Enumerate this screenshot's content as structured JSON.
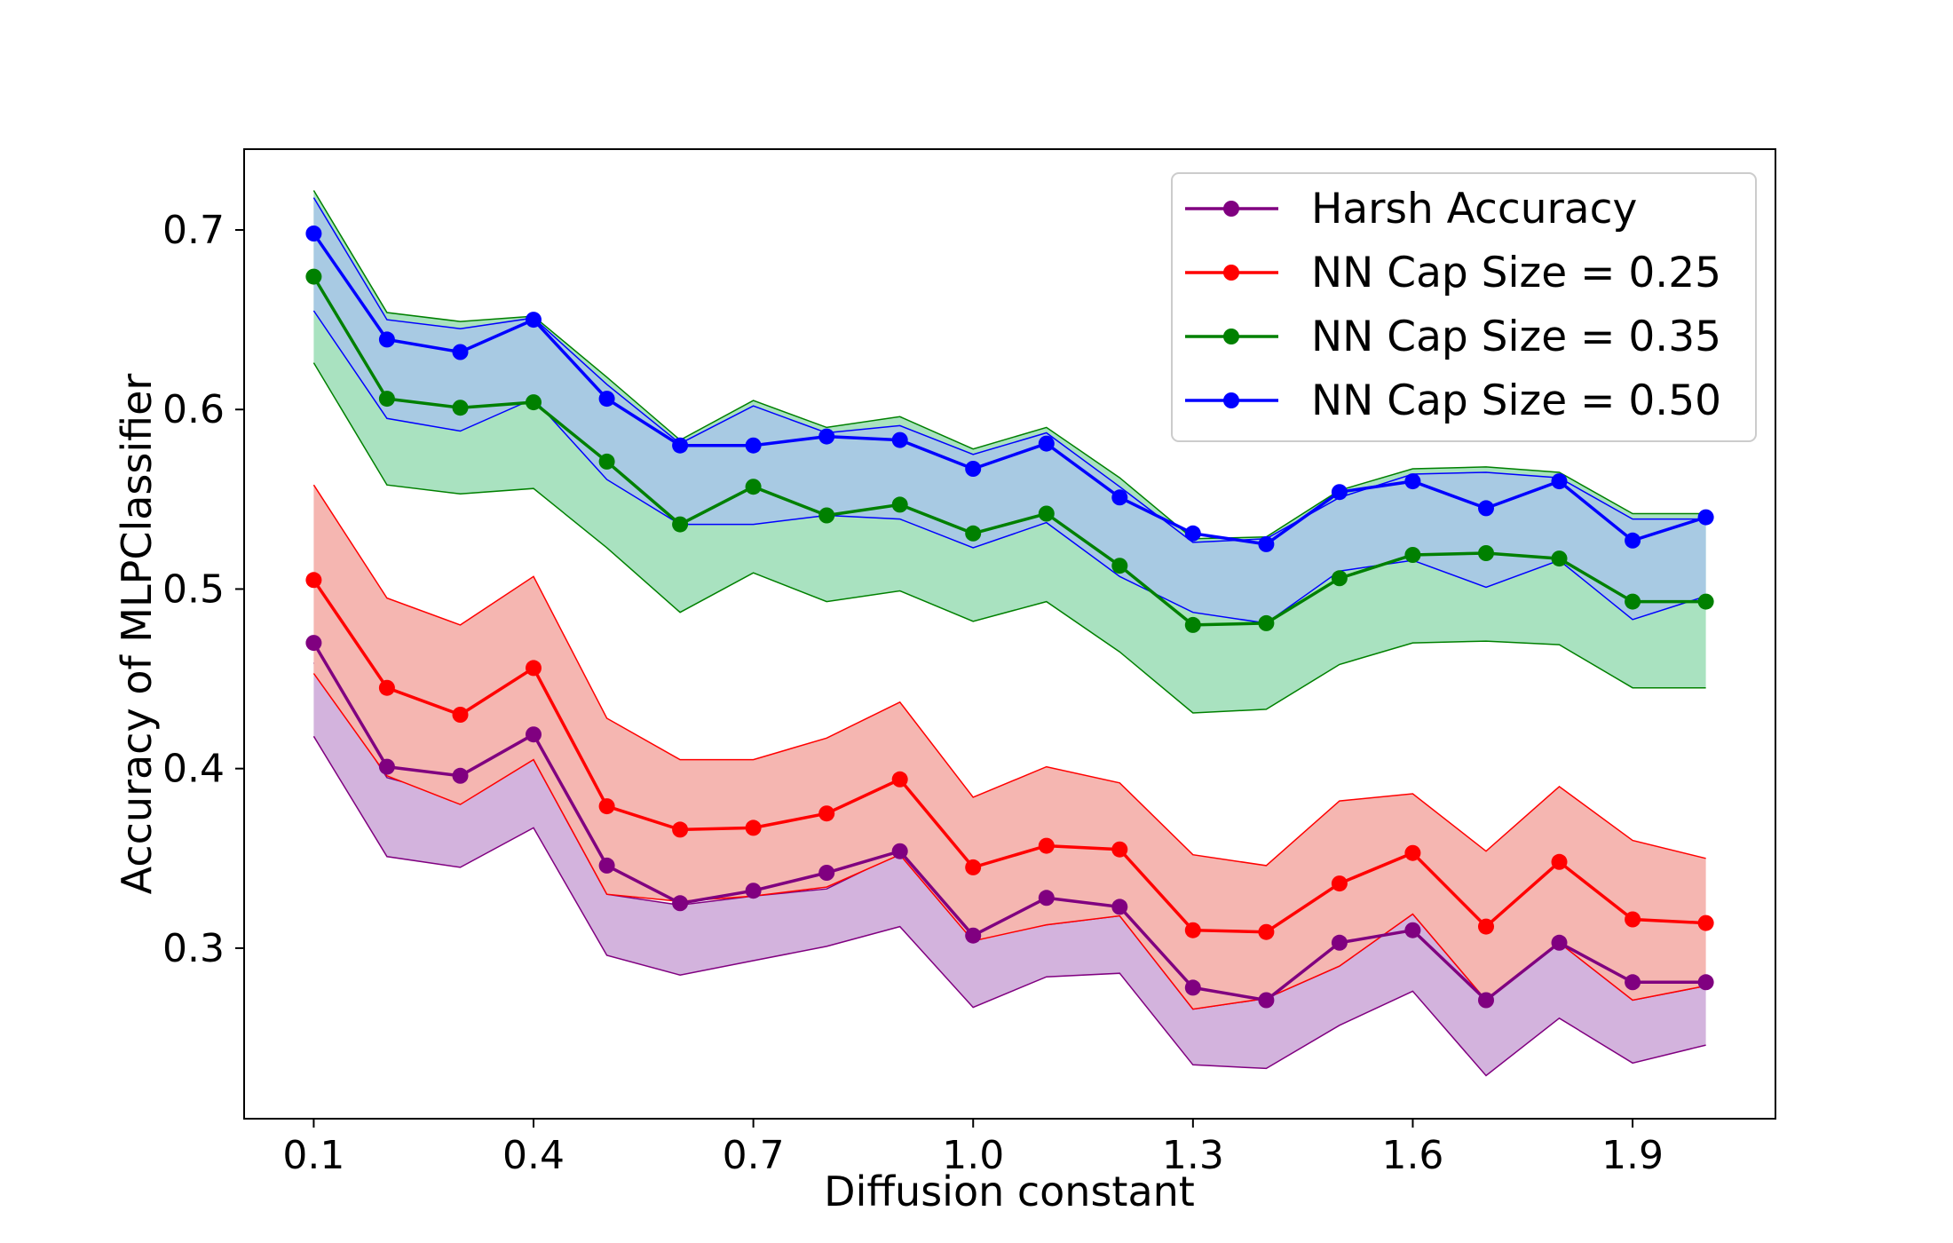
{
  "chart_data": {
    "type": "line",
    "title": "",
    "xlabel": "Diffusion constant",
    "ylabel": "Accuracy of MLPClassifier",
    "xlim": [
      0.005,
      2.095
    ],
    "ylim": [
      0.205,
      0.745
    ],
    "xticks": [
      "0.1",
      "0.4",
      "0.7",
      "1.0",
      "1.3",
      "1.6",
      "1.9"
    ],
    "yticks": [
      "0.3",
      "0.4",
      "0.5",
      "0.6",
      "0.7"
    ],
    "grid": false,
    "legend_position": "top-right",
    "x": [
      0.1,
      0.2,
      0.3,
      0.4,
      0.5,
      0.6,
      0.7,
      0.8,
      0.9,
      1.0,
      1.1,
      1.2,
      1.3,
      1.4,
      1.5,
      1.6,
      1.7,
      1.8,
      1.9,
      2.0
    ],
    "series": [
      {
        "name": "Harsh Accuracy",
        "color": "#800080",
        "fill": "#d3b3dd",
        "values": [
          0.47,
          0.401,
          0.396,
          0.419,
          0.346,
          0.325,
          0.332,
          0.342,
          0.354,
          0.307,
          0.328,
          0.323,
          0.278,
          0.271,
          0.303,
          0.31,
          0.271,
          0.303,
          0.281,
          0.281
        ],
        "upper": [
          0.459,
          0.395,
          0.384,
          0.405,
          0.33,
          0.324,
          0.329,
          0.333,
          0.353,
          0.305,
          0.313,
          0.318,
          0.266,
          0.272,
          0.29,
          0.319,
          0.271,
          0.303,
          0.271,
          0.279
        ],
        "lower": [
          0.418,
          0.351,
          0.345,
          0.367,
          0.296,
          0.285,
          0.293,
          0.301,
          0.312,
          0.267,
          0.284,
          0.286,
          0.235,
          0.233,
          0.257,
          0.276,
          0.229,
          0.261,
          0.236,
          0.246
        ]
      },
      {
        "name": "NN Cap Size = 0.25",
        "color": "#ff0000",
        "fill": "#f5b6b1",
        "values": [
          0.505,
          0.445,
          0.43,
          0.456,
          0.379,
          0.366,
          0.367,
          0.375,
          0.394,
          0.345,
          0.357,
          0.355,
          0.31,
          0.309,
          0.336,
          0.353,
          0.312,
          0.348,
          0.316,
          0.314
        ],
        "upper": [
          0.558,
          0.495,
          0.48,
          0.507,
          0.428,
          0.405,
          0.405,
          0.417,
          0.437,
          0.384,
          0.401,
          0.392,
          0.352,
          0.346,
          0.382,
          0.386,
          0.354,
          0.39,
          0.36,
          0.35
        ],
        "lower": [
          0.453,
          0.396,
          0.38,
          0.405,
          0.33,
          0.326,
          0.329,
          0.334,
          0.352,
          0.304,
          0.313,
          0.318,
          0.266,
          0.272,
          0.29,
          0.319,
          0.271,
          0.303,
          0.271,
          0.279
        ]
      },
      {
        "name": "NN Cap Size = 0.35",
        "color": "#008000",
        "fill": "#a9e2c0",
        "values": [
          0.674,
          0.606,
          0.601,
          0.604,
          0.571,
          0.536,
          0.557,
          0.541,
          0.547,
          0.531,
          0.542,
          0.513,
          0.48,
          0.481,
          0.506,
          0.519,
          0.52,
          0.517,
          0.493,
          0.493
        ],
        "upper": [
          0.722,
          0.654,
          0.649,
          0.652,
          0.618,
          0.583,
          0.605,
          0.59,
          0.596,
          0.578,
          0.59,
          0.562,
          0.528,
          0.529,
          0.555,
          0.567,
          0.568,
          0.565,
          0.542,
          0.542
        ],
        "lower": [
          0.626,
          0.558,
          0.553,
          0.556,
          0.523,
          0.487,
          0.509,
          0.493,
          0.499,
          0.482,
          0.493,
          0.465,
          0.431,
          0.433,
          0.458,
          0.47,
          0.471,
          0.469,
          0.445,
          0.445
        ]
      },
      {
        "name": "NN Cap Size = 0.50",
        "color": "#0000ff",
        "fill": "#a8cae3",
        "values": [
          0.698,
          0.639,
          0.632,
          0.65,
          0.606,
          0.58,
          0.58,
          0.585,
          0.583,
          0.567,
          0.581,
          0.551,
          0.531,
          0.525,
          0.554,
          0.56,
          0.545,
          0.56,
          0.527,
          0.54
        ],
        "upper": [
          0.718,
          0.65,
          0.645,
          0.651,
          0.614,
          0.581,
          0.602,
          0.587,
          0.591,
          0.575,
          0.587,
          0.557,
          0.526,
          0.528,
          0.551,
          0.564,
          0.565,
          0.562,
          0.539,
          0.539
        ],
        "lower": [
          0.655,
          0.595,
          0.588,
          0.606,
          0.561,
          0.536,
          0.536,
          0.541,
          0.539,
          0.523,
          0.537,
          0.507,
          0.487,
          0.481,
          0.51,
          0.516,
          0.501,
          0.516,
          0.483,
          0.496
        ]
      }
    ]
  }
}
